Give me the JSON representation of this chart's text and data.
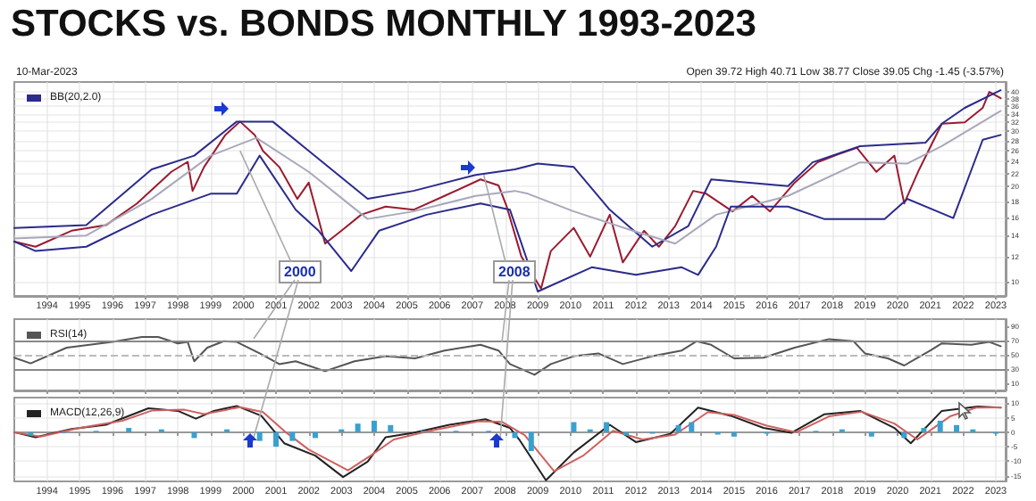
{
  "chart_data": [
    {
      "type": "line",
      "title": "STOCKS vs. BONDS MONTHLY 1993-2023",
      "annotations": [
        "10-Mar-2023",
        "Open 39.72 High 40.71 Low 38.77 Close 39.05 Chg -1.45 (-3.57%)",
        {
          "text": "2000",
          "x": 1999.9,
          "y": 26
        },
        {
          "text": "2008",
          "x": 2007.35,
          "y": 21.8
        }
      ],
      "log": "y",
      "grid": true,
      "legend": "top left",
      "xlim": [
        1993,
        2023.3
      ],
      "xticks": [
        1994,
        1995,
        1996,
        1997,
        1998,
        1999,
        2000,
        2001,
        2002,
        2003,
        2004,
        2005,
        2006,
        2007,
        2008,
        2009,
        2010,
        2011,
        2012,
        2013,
        2014,
        2015,
        2016,
        2017,
        2018,
        2019,
        2020,
        2021,
        2022,
        2023
      ],
      "ylim": [
        9,
        43
      ],
      "yticks": [
        10,
        12,
        14,
        16,
        18,
        20,
        22,
        24,
        26,
        28,
        30,
        32,
        34,
        36,
        38,
        40
      ],
      "series": [
        {
          "color": "#9b1b30",
          "x": [
            1993.0,
            1993.65,
            1994.75,
            1995.8,
            1996.75,
            1997.8,
            1998.3,
            1998.45,
            1998.8,
            1999.45,
            1999.9,
            2000.35,
            2000.6,
            2001.1,
            2001.65,
            2002.0,
            2002.5,
            2003.0,
            2003.6,
            2004.35,
            2005.2,
            2006.15,
            2007.25,
            2007.8,
            2008.05,
            2008.5,
            2009.1,
            2009.4,
            2010.1,
            2010.6,
            2011.2,
            2011.6,
            2012.25,
            2012.7,
            2013.2,
            2013.75,
            2014.15,
            2014.95,
            2015.55,
            2016.1,
            2016.85,
            2017.55,
            2018.2,
            2018.75,
            2019.35,
            2019.9,
            2020.2,
            2020.65,
            2021.35,
            2022.05,
            2022.6,
            2022.8,
            2023.15
          ],
          "values": [
            13.4,
            12.9,
            14.5,
            15.1,
            17.7,
            22.3,
            24.0,
            19.4,
            23.1,
            29.2,
            32.2,
            29.2,
            26.0,
            23.1,
            18.3,
            20.6,
            13.2,
            14.5,
            16.3,
            17.3,
            16.9,
            18.7,
            21.1,
            20.2,
            17.3,
            12.0,
            9.5,
            12.5,
            14.8,
            12.0,
            16.3,
            11.5,
            14.5,
            12.9,
            15.0,
            19.4,
            19.0,
            16.7,
            18.7,
            16.7,
            20.6,
            23.9,
            25.4,
            26.6,
            22.3,
            25.1,
            17.7,
            22.6,
            31.7,
            32.0,
            35.6,
            40.0,
            38.2
          ]
        },
        {
          "name": "BB(20,2.0)",
          "color": "#2b2b8c",
          "x": [
            1993.0,
            1995.2,
            1997.2,
            1998.5,
            1999.8,
            2000.9,
            2002.0,
            2003.8,
            2005.2,
            2007.1,
            2008.3,
            2009.0,
            2010.1,
            2011.2,
            2012.5,
            2013.6,
            2014.3,
            2016.65,
            2017.4,
            2018.85,
            2020.85,
            2021.35,
            2022.05,
            2023.15
          ],
          "values": [
            14.8,
            15.1,
            22.7,
            25.1,
            32.2,
            32.2,
            26.0,
            18.3,
            19.4,
            21.8,
            22.7,
            23.7,
            23.1,
            16.9,
            12.9,
            15.0,
            21.1,
            20.1,
            23.9,
            26.9,
            27.6,
            31.7,
            35.6,
            40.5
          ]
        },
        {
          "color": "#a8a8bc",
          "x": [
            1993.0,
            1995.2,
            1997.2,
            1999.0,
            2000.4,
            2002.0,
            2003.8,
            2005.2,
            2007.1,
            2008.3,
            2008.7,
            2010.1,
            2011.9,
            2013.2,
            2014.45,
            2016.65,
            2018.85,
            2020.3,
            2021.35,
            2023.15
          ],
          "values": [
            13.7,
            14.0,
            18.3,
            25.1,
            28.6,
            22.3,
            15.8,
            16.7,
            18.7,
            19.4,
            19.0,
            16.7,
            14.5,
            13.2,
            16.3,
            18.7,
            23.9,
            23.7,
            26.9,
            34.8
          ]
        },
        {
          "color": "#2b2b8c",
          "x": [
            1993.0,
            1993.65,
            1995.2,
            1997.2,
            1999.0,
            1999.8,
            2000.5,
            2001.6,
            2002.3,
            2003.3,
            2004.15,
            2005.6,
            2007.25,
            2008.15,
            2009.0,
            2010.65,
            2012.0,
            2013.4,
            2013.9,
            2014.45,
            2014.9,
            2016.65,
            2017.75,
            2019.6,
            2020.3,
            2021.7,
            2022.6,
            2023.15
          ],
          "values": [
            13.4,
            12.5,
            12.9,
            16.3,
            19.0,
            19.0,
            25.1,
            16.9,
            14.5,
            10.8,
            14.5,
            16.3,
            17.7,
            16.9,
            9.3,
            11.1,
            10.5,
            11.1,
            10.5,
            12.9,
            17.3,
            17.3,
            15.8,
            15.8,
            18.3,
            15.9,
            28.2,
            29.2
          ]
        }
      ]
    },
    {
      "type": "line",
      "grid": "x",
      "legend": "top left",
      "tick_labels": "y",
      "xlim": [
        1993,
        2023.3
      ],
      "xticks": [
        1994,
        1995,
        1996,
        1997,
        1998,
        1999,
        2000,
        2001,
        2002,
        2003,
        2004,
        2005,
        2006,
        2007,
        2008,
        2009,
        2010,
        2011,
        2012,
        2013,
        2014,
        2015,
        2016,
        2017,
        2018,
        2019,
        2020,
        2021,
        2022,
        2023
      ],
      "ylim": [
        0,
        100
      ],
      "yticks": [
        10,
        30,
        50,
        70,
        90
      ],
      "ref_lines": [
        {
          "axis": "y",
          "value": 70,
          "color": "#888888"
        },
        {
          "axis": "y",
          "value": 30,
          "color": "#888888"
        },
        {
          "axis": "y",
          "value": 50,
          "color": "#bbbbbb",
          "line_style": "dashed"
        }
      ],
      "series": [
        {
          "name": "RSI(14)",
          "color": "#555555",
          "x": [
            1993.0,
            1993.5,
            1994.6,
            1996.0,
            1996.9,
            1997.4,
            1998.0,
            1998.3,
            1998.5,
            1998.9,
            1999.4,
            1999.8,
            2000.5,
            2001.1,
            2001.6,
            2002.5,
            2003.4,
            2004.35,
            2005.25,
            2006.15,
            2007.25,
            2007.8,
            2008.15,
            2008.9,
            2009.4,
            2010.1,
            2010.85,
            2011.6,
            2012.5,
            2013.4,
            2013.85,
            2014.3,
            2015.0,
            2015.9,
            2016.85,
            2017.9,
            2018.65,
            2019.0,
            2019.7,
            2020.2,
            2021.0,
            2021.35,
            2022.25,
            2022.8,
            2023.15
          ],
          "values": [
            46,
            38,
            60,
            68,
            75,
            75,
            66,
            68,
            41,
            60,
            69,
            68,
            52,
            37,
            41,
            27,
            41,
            48,
            45,
            56,
            64,
            56,
            37,
            22,
            37,
            48,
            52,
            37,
            48,
            56,
            69,
            64,
            45,
            46,
            60,
            72,
            69,
            52,
            45,
            35,
            56,
            66,
            64,
            68,
            62
          ]
        }
      ]
    },
    {
      "type": "line",
      "grid": true,
      "legend": "top left",
      "xlim": [
        1993,
        2023.3
      ],
      "xticks": [
        1994,
        1995,
        1996,
        1997,
        1998,
        1999,
        2000,
        2001,
        2002,
        2003,
        2004,
        2005,
        2006,
        2007,
        2008,
        2009,
        2010,
        2011,
        2012,
        2013,
        2014,
        2015,
        2016,
        2017,
        2018,
        2019,
        2020,
        2021,
        2022,
        2023
      ],
      "ylim": [
        -17,
        12
      ],
      "yticks": [
        -15,
        -10,
        -5,
        0,
        5,
        10
      ],
      "series": [
        {
          "type": "bar",
          "color": "#3aa0d0",
          "x": [
            1993.5,
            1994.5,
            1995.5,
            1996.5,
            1997.5,
            1998.5,
            1999.5,
            2000.5,
            2001.0,
            2001.5,
            2002.2,
            2003.0,
            2003.5,
            2004.0,
            2004.5,
            2005.5,
            2006.5,
            2007.5,
            2008.3,
            2008.8,
            2009.6,
            2010.1,
            2010.6,
            2011.1,
            2011.7,
            2012.5,
            2013.3,
            2013.7,
            2014.5,
            2015.0,
            2016.0,
            2017.5,
            2018.3,
            2019.2,
            2020.2,
            2020.8,
            2021.3,
            2021.8,
            2022.3,
            2023.0
          ],
          "values": [
            -1,
            -0.3,
            0.5,
            1.5,
            1,
            -2,
            1,
            -3,
            -5,
            -3,
            -2,
            1,
            3,
            4,
            2.5,
            0.5,
            0.5,
            0.5,
            -2,
            -6.5,
            0,
            3.5,
            1,
            3.5,
            -1,
            -0.5,
            2.5,
            3.5,
            -0.8,
            -1.5,
            -0.5,
            0.5,
            1,
            -1.5,
            -2,
            1.5,
            4,
            2.5,
            1,
            -0.5
          ]
        },
        {
          "name": "MACD(12,26,9)",
          "color": "#222222",
          "x": [
            1993.0,
            1993.65,
            1994.75,
            1995.8,
            1997.1,
            1998.0,
            1998.55,
            1999.1,
            1999.8,
            2000.55,
            2001.25,
            2002.2,
            2003.05,
            2003.8,
            2004.35,
            2005.2,
            2006.3,
            2007.4,
            2008.15,
            2008.45,
            2009.25,
            2010.1,
            2011.2,
            2012.0,
            2013.05,
            2013.9,
            2014.9,
            2015.9,
            2016.75,
            2017.75,
            2018.85,
            2019.9,
            2020.4,
            2021.35,
            2022.45,
            2023.15
          ],
          "values": [
            0,
            -1.7,
            1.1,
            2.6,
            8.3,
            7.4,
            4.7,
            7.4,
            9.1,
            5.7,
            -3.8,
            -8.1,
            -15.5,
            -10.2,
            -1.7,
            -0.2,
            2.6,
            4.5,
            1.5,
            -2.8,
            -16.6,
            -7.0,
            2.6,
            -3.4,
            -0.6,
            8.5,
            5.7,
            1.5,
            -0.2,
            6.2,
            7.4,
            1.5,
            -3.8,
            7.4,
            8.9,
            8.5
          ]
        },
        {
          "color": "#d06060",
          "x": [
            1993.0,
            1993.8,
            1995.0,
            1996.3,
            1997.2,
            1998.2,
            1998.8,
            1999.9,
            2000.6,
            2001.3,
            2002.0,
            2003.2,
            2003.9,
            2004.6,
            2005.7,
            2007.2,
            2007.9,
            2008.6,
            2009.5,
            2010.4,
            2011.3,
            2012.2,
            2013.2,
            2014.2,
            2015.0,
            2016.0,
            2016.9,
            2017.9,
            2018.9,
            2019.9,
            2020.6,
            2021.6,
            2022.4,
            2023.15
          ],
          "values": [
            0,
            -1.5,
            1.5,
            4,
            7.5,
            7.8,
            6.3,
            8.7,
            7,
            0,
            -6,
            -13.2,
            -8,
            -2.5,
            0.5,
            3.8,
            3.6,
            -1,
            -13.5,
            -8,
            0.5,
            -2.5,
            -0.8,
            7,
            6,
            2.3,
            0,
            5.5,
            7.1,
            3,
            -2.5,
            5.5,
            8.5,
            8.6
          ]
        }
      ]
    }
  ]
}
